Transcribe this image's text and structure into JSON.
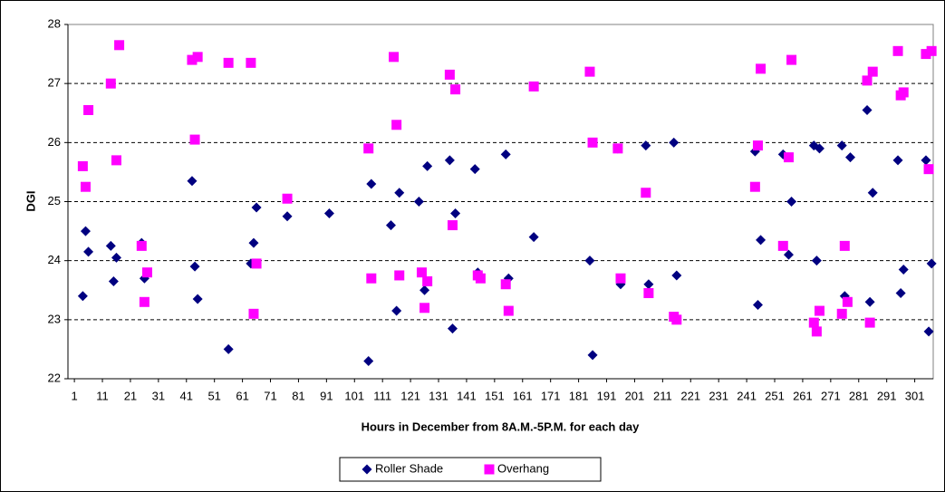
{
  "chart_data": {
    "type": "scatter",
    "x_label": "Hours in December from 8A.M.-5P.M. for each day",
    "y_label": "DGI",
    "xlim": [
      -1.3,
      307.6
    ],
    "ylim": [
      22,
      28
    ],
    "xticks": [
      1,
      11,
      21,
      31,
      41,
      51,
      61,
      71,
      81,
      91,
      101,
      111,
      121,
      131,
      141,
      151,
      161,
      171,
      181,
      191,
      201,
      211,
      221,
      231,
      241,
      251,
      261,
      271,
      281,
      291,
      301
    ],
    "yticks": [
      22,
      23,
      24,
      25,
      26,
      27,
      28
    ],
    "grid": true,
    "legend": "bottom",
    "series": [
      {
        "name": "Roller Shade",
        "color": "#000080",
        "marker": "diamond",
        "x": [
          4,
          5,
          6,
          14,
          15,
          16,
          25,
          26,
          43,
          44,
          45,
          56,
          64,
          65,
          66,
          77,
          92,
          106,
          107,
          114,
          116,
          117,
          124,
          126,
          127,
          135,
          136,
          137,
          144,
          145,
          155,
          156,
          165,
          185,
          186,
          195,
          196,
          205,
          206,
          215,
          216,
          244,
          245,
          246,
          254,
          256,
          257,
          265,
          266,
          267,
          275,
          276,
          278,
          284,
          285,
          286,
          295,
          296,
          297,
          305,
          306,
          307
        ],
        "values": [
          23.4,
          24.5,
          24.15,
          24.25,
          23.65,
          24.05,
          24.3,
          23.7,
          25.35,
          23.9,
          23.35,
          22.5,
          23.95,
          24.3,
          24.9,
          24.75,
          24.8,
          22.3,
          25.3,
          24.6,
          23.15,
          25.15,
          25.0,
          23.5,
          25.6,
          25.7,
          22.85,
          24.8,
          25.55,
          23.8,
          25.8,
          23.7,
          24.4,
          24.0,
          22.4,
          25.9,
          23.6,
          25.95,
          23.6,
          26.0,
          23.75,
          25.85,
          23.25,
          24.35,
          25.8,
          24.1,
          25.0,
          25.95,
          24.0,
          25.9,
          25.95,
          23.4,
          25.75,
          26.55,
          23.3,
          25.15,
          25.7,
          23.45,
          23.85,
          25.7,
          22.8,
          23.95
        ]
      },
      {
        "name": "Overhang",
        "color": "#ff00ff",
        "marker": "square",
        "x": [
          4,
          5,
          6,
          14,
          16,
          17,
          25,
          26,
          27,
          43,
          44,
          45,
          56,
          64,
          65,
          66,
          77,
          106,
          107,
          115,
          116,
          117,
          125,
          126,
          127,
          135,
          136,
          137,
          145,
          146,
          155,
          156,
          165,
          185,
          186,
          195,
          196,
          205,
          206,
          215,
          216,
          244,
          245,
          246,
          254,
          256,
          257,
          265,
          266,
          267,
          275,
          276,
          277,
          284,
          285,
          286,
          295,
          296,
          297,
          305,
          306,
          307
        ],
        "values": [
          25.6,
          25.25,
          26.55,
          27.0,
          25.7,
          27.65,
          24.25,
          23.3,
          23.8,
          27.4,
          26.05,
          27.45,
          27.35,
          27.35,
          23.1,
          23.95,
          25.05,
          25.9,
          23.7,
          27.45,
          26.3,
          23.75,
          23.8,
          23.2,
          23.65,
          27.15,
          24.6,
          26.9,
          23.75,
          23.7,
          23.6,
          23.15,
          26.95,
          27.2,
          26.0,
          25.9,
          23.7,
          25.15,
          23.45,
          23.05,
          23.0,
          25.25,
          25.95,
          27.25,
          24.25,
          25.75,
          27.4,
          22.95,
          22.8,
          23.15,
          23.1,
          24.25,
          23.3,
          27.05,
          22.95,
          27.2,
          27.55,
          26.8,
          26.85,
          27.5,
          25.55,
          27.55
        ]
      }
    ]
  }
}
